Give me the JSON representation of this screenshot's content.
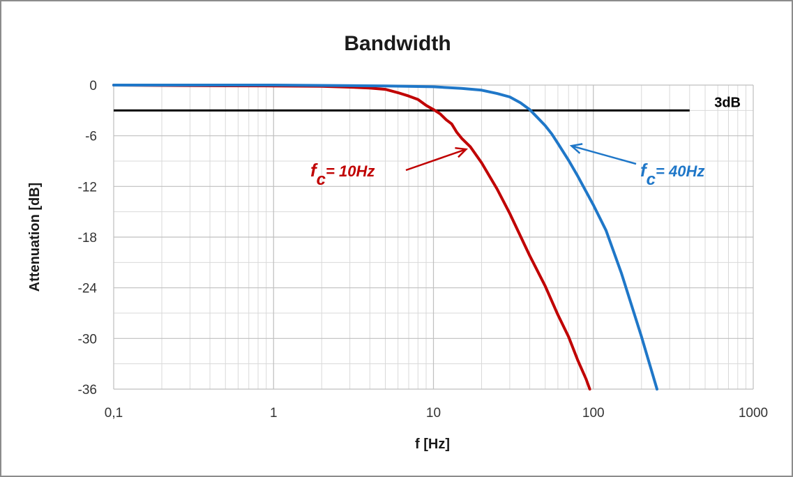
{
  "chart_data": {
    "type": "line",
    "title": "Bandwidth",
    "xlabel": "f [Hz]",
    "ylabel": "Attenuation [dB]",
    "x_scale": "log",
    "xlim": [
      0.1,
      1000
    ],
    "ylim": [
      -36,
      0
    ],
    "x_ticks": [
      0.1,
      1,
      10,
      100,
      1000
    ],
    "x_tick_labels": [
      "0,1",
      "1",
      "10",
      "100",
      "1000"
    ],
    "y_ticks": [
      0,
      -6,
      -12,
      -18,
      -24,
      -30,
      -36
    ],
    "y_tick_labels": [
      "0",
      "-6",
      "-12",
      "-18",
      "-24",
      "-30",
      "-36"
    ],
    "grid": true,
    "series": [
      {
        "color": "#c00000",
        "x": [
          0.1,
          0.5,
          1,
          2,
          3,
          4,
          5,
          6,
          7,
          8,
          9,
          10,
          11,
          12,
          13,
          14,
          15,
          17,
          20,
          25,
          30,
          40,
          50,
          60,
          70,
          80,
          90,
          95
        ],
        "y": [
          0,
          -0.08,
          -0.1,
          -0.15,
          -0.25,
          -0.35,
          -0.5,
          -0.9,
          -1.3,
          -1.7,
          -2.4,
          -2.9,
          -3.4,
          -4.1,
          -4.6,
          -5.6,
          -6.3,
          -7.3,
          -9.2,
          -12.3,
          -15.2,
          -20.2,
          -23.8,
          -27.2,
          -29.8,
          -32.6,
          -34.8,
          -36
        ]
      },
      {
        "color": "#1f77c8",
        "x": [
          0.1,
          1,
          5,
          10,
          15,
          20,
          25,
          30,
          35,
          40,
          45,
          50,
          55,
          60,
          70,
          80,
          100,
          120,
          150,
          200,
          250
        ],
        "y": [
          0,
          0,
          -0.1,
          -0.2,
          -0.4,
          -0.6,
          -1,
          -1.4,
          -2.1,
          -2.9,
          -3.9,
          -4.8,
          -5.8,
          -6.9,
          -8.9,
          -10.8,
          -14.2,
          -17.2,
          -22.3,
          -29.8,
          -36
        ]
      }
    ],
    "reference_line": {
      "y": -3,
      "x_start": 0.1,
      "x_end": 400,
      "label": "3dB",
      "color": "#000000"
    },
    "annotations": [
      {
        "symbol": "f",
        "subscript": "c",
        "text": "= 10Hz",
        "color": "#c00000",
        "arrow_to": [
          16,
          -7.6
        ]
      },
      {
        "symbol": "f",
        "subscript": "c",
        "text": "= 40Hz",
        "color": "#1f77c8",
        "arrow_to": [
          73,
          -7.2
        ]
      }
    ]
  }
}
